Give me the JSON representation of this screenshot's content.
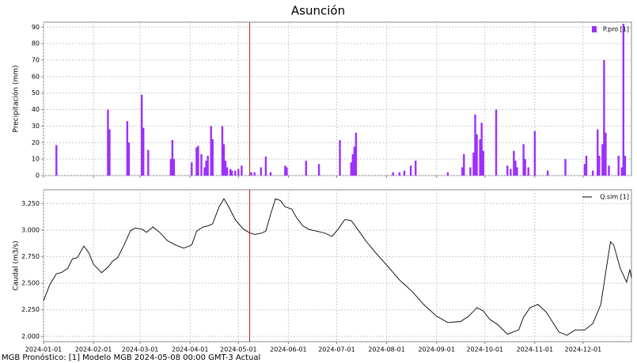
{
  "title": "Asunción",
  "footer": "MGB Pronóstico: [1] Modelo MGB 2024-05-08 00:00 GMT-3 Actual",
  "forecast_line": {
    "x": "2024-05-08",
    "color": "#b22222"
  },
  "chart_data": [
    {
      "type": "bar",
      "ylabel": "Precipitación (mm)",
      "legend": "upper right",
      "grid": true,
      "xlim": [
        "2024-01-01",
        "2024-12-31"
      ],
      "xticks": [
        "2024-01-01",
        "2024-02-01",
        "2024-03-01",
        "2024-04-01",
        "2024-05-01",
        "2024-06-01",
        "2024-07-01",
        "2024-08-01",
        "2024-09-01",
        "2024-10-01",
        "2024-11-01",
        "2024-12-01"
      ],
      "ylim": [
        0,
        93
      ],
      "yticks": [
        0,
        10,
        20,
        30,
        40,
        50,
        60,
        70,
        80,
        90
      ],
      "x": [
        "2024-01-09",
        "2024-02-10",
        "2024-02-11",
        "2024-02-22",
        "2024-02-23",
        "2024-03-02",
        "2024-03-03",
        "2024-03-06",
        "2024-03-20",
        "2024-03-21",
        "2024-03-22",
        "2024-04-02",
        "2024-04-05",
        "2024-04-06",
        "2024-04-08",
        "2024-04-10",
        "2024-04-11",
        "2024-04-12",
        "2024-04-14",
        "2024-04-15",
        "2024-04-21",
        "2024-04-22",
        "2024-04-23",
        "2024-04-24",
        "2024-04-26",
        "2024-04-27",
        "2024-04-29",
        "2024-05-01",
        "2024-05-03",
        "2024-05-09",
        "2024-05-11",
        "2024-05-15",
        "2024-05-18",
        "2024-05-21",
        "2024-05-30",
        "2024-05-31",
        "2024-06-12",
        "2024-06-20",
        "2024-07-03",
        "2024-07-10",
        "2024-07-11",
        "2024-07-12",
        "2024-07-13",
        "2024-08-05",
        "2024-08-09",
        "2024-08-12",
        "2024-08-16",
        "2024-08-19",
        "2024-09-08",
        "2024-09-17",
        "2024-09-18",
        "2024-09-22",
        "2024-09-24",
        "2024-09-25",
        "2024-09-26",
        "2024-09-28",
        "2024-09-29",
        "2024-09-30",
        "2024-10-08",
        "2024-10-15",
        "2024-10-17",
        "2024-10-19",
        "2024-10-20",
        "2024-10-21",
        "2024-10-25",
        "2024-10-26",
        "2024-10-28",
        "2024-11-01",
        "2024-11-09",
        "2024-11-20",
        "2024-12-02",
        "2024-12-03",
        "2024-12-07",
        "2024-12-10",
        "2024-12-11",
        "2024-12-13",
        "2024-12-14",
        "2024-12-15",
        "2024-12-17",
        "2024-12-23",
        "2024-12-25",
        "2024-12-26",
        "2024-12-27"
      ],
      "series": [
        {
          "name": "P.pro [1]",
          "color": "#9b30ff",
          "values": [
            18.5,
            40,
            28,
            33,
            20,
            49,
            29,
            15.5,
            10,
            21.5,
            10,
            8,
            17,
            18,
            13,
            5,
            9,
            12,
            30,
            22,
            30,
            19,
            9,
            5,
            4,
            3,
            3,
            4,
            6,
            2,
            2,
            5,
            11.5,
            2,
            6,
            5,
            9,
            7,
            21.5,
            8,
            13,
            17.5,
            26,
            2,
            2,
            3,
            6,
            9,
            2,
            5,
            13,
            5,
            14,
            37,
            25,
            22,
            32,
            15,
            40,
            6,
            4,
            15,
            9,
            5,
            19,
            10,
            5,
            27,
            3,
            10,
            7,
            12,
            3,
            28,
            12,
            19,
            70,
            26,
            6,
            12,
            5,
            92,
            12
          ]
        }
      ]
    },
    {
      "type": "line",
      "ylabel": "Caudal (m3/s)",
      "legend": "upper right",
      "grid": true,
      "xlim": [
        "2024-01-01",
        "2024-12-31"
      ],
      "xticks": [
        "2024-01-01",
        "2024-02-01",
        "2024-03-01",
        "2024-04-01",
        "2024-05-01",
        "2024-06-01",
        "2024-07-01",
        "2024-08-01",
        "2024-09-01",
        "2024-10-01",
        "2024-11-01",
        "2024-12-01"
      ],
      "ylim": [
        1.95,
        3.38
      ],
      "yticks": [
        {
          "value": 2,
          "label": "2.000"
        },
        {
          "value": 2.25,
          "label": "2.250"
        },
        {
          "value": 2.5,
          "label": "2.500"
        },
        {
          "value": 2.75,
          "label": "2.750"
        },
        {
          "value": 3,
          "label": "3.000"
        },
        {
          "value": 3.25,
          "label": "3.250"
        }
      ],
      "x": [
        "2024-01-01",
        "2024-01-05",
        "2024-01-09",
        "2024-01-12",
        "2024-01-16",
        "2024-01-19",
        "2024-01-22",
        "2024-01-26",
        "2024-01-29",
        "2024-02-01",
        "2024-02-06",
        "2024-02-10",
        "2024-02-13",
        "2024-02-16",
        "2024-02-20",
        "2024-02-24",
        "2024-02-27",
        "2024-03-02",
        "2024-03-05",
        "2024-03-09",
        "2024-03-13",
        "2024-03-18",
        "2024-03-23",
        "2024-03-28",
        "2024-04-02",
        "2024-04-05",
        "2024-04-09",
        "2024-04-12",
        "2024-04-15",
        "2024-04-19",
        "2024-04-22",
        "2024-04-25",
        "2024-04-29",
        "2024-05-04",
        "2024-05-08",
        "2024-05-11",
        "2024-05-15",
        "2024-05-18",
        "2024-05-21",
        "2024-05-24",
        "2024-05-27",
        "2024-05-30",
        "2024-06-03",
        "2024-06-06",
        "2024-06-10",
        "2024-06-14",
        "2024-06-19",
        "2024-06-24",
        "2024-06-28",
        "2024-07-02",
        "2024-07-06",
        "2024-07-10",
        "2024-07-14",
        "2024-07-19",
        "2024-07-25",
        "2024-08-02",
        "2024-08-09",
        "2024-08-17",
        "2024-08-24",
        "2024-09-01",
        "2024-09-08",
        "2024-09-16",
        "2024-09-21",
        "2024-09-26",
        "2024-09-30",
        "2024-10-04",
        "2024-10-09",
        "2024-10-15",
        "2024-10-22",
        "2024-10-25",
        "2024-10-29",
        "2024-11-03",
        "2024-11-08",
        "2024-11-16",
        "2024-11-21",
        "2024-11-26",
        "2024-12-02",
        "2024-12-07",
        "2024-12-12",
        "2024-12-15",
        "2024-12-18",
        "2024-12-20",
        "2024-12-24",
        "2024-12-28",
        "2024-12-30",
        "2024-12-31"
      ],
      "series": [
        {
          "name": "Q.sim [1]",
          "color": "#000000",
          "values": [
            2.335,
            2.49,
            2.59,
            2.6,
            2.64,
            2.73,
            2.74,
            2.85,
            2.79,
            2.68,
            2.6,
            2.65,
            2.71,
            2.74,
            2.86,
            2.995,
            3.02,
            3.01,
            2.98,
            3.03,
            2.98,
            2.9,
            2.86,
            2.83,
            2.86,
            2.99,
            3.03,
            3.04,
            3.06,
            3.22,
            3.295,
            3.22,
            3.1,
            3.01,
            2.975,
            2.96,
            2.97,
            2.99,
            3.15,
            3.295,
            3.28,
            3.22,
            3.2,
            3.12,
            3.04,
            3.005,
            2.99,
            2.97,
            2.94,
            3.01,
            3.1,
            3.09,
            3.01,
            2.9,
            2.79,
            2.655,
            2.53,
            2.42,
            2.3,
            2.19,
            2.13,
            2.14,
            2.19,
            2.27,
            2.24,
            2.16,
            2.11,
            2.02,
            2.06,
            2.18,
            2.27,
            2.3,
            2.23,
            2.04,
            2.01,
            2.06,
            2.06,
            2.12,
            2.3,
            2.6,
            2.89,
            2.86,
            2.64,
            2.51,
            2.63,
            2.55
          ]
        }
      ]
    }
  ]
}
